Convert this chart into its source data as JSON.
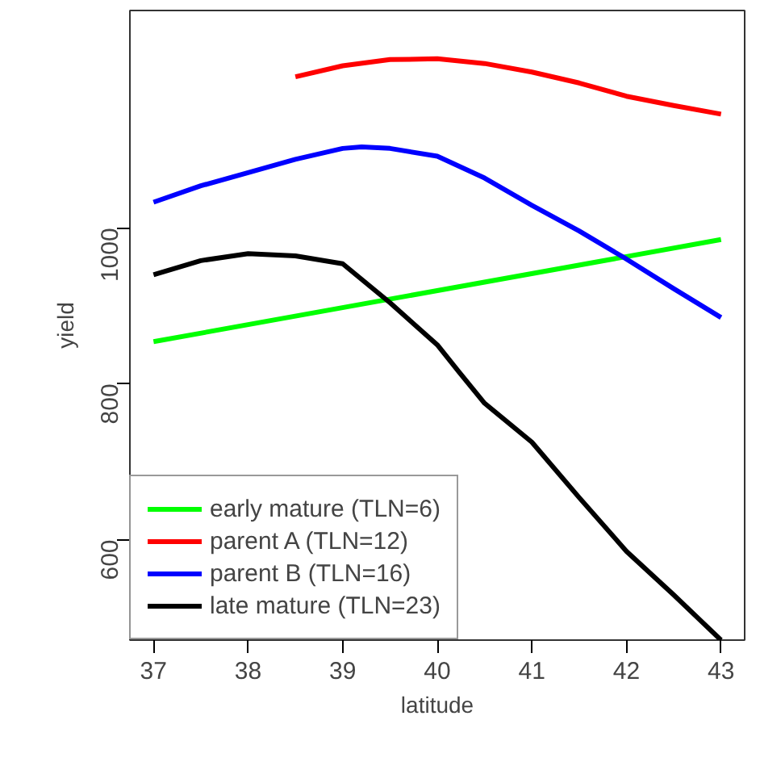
{
  "chart_data": {
    "type": "line",
    "xlabel": "latitude",
    "ylabel": "yield",
    "xlim": [
      36.75,
      43.25
    ],
    "ylim": [
      471,
      1279
    ],
    "xticks": [
      37,
      38,
      39,
      40,
      41,
      42,
      43
    ],
    "yticks": [
      600,
      800,
      1000
    ],
    "grid": false,
    "legend": "bottom left",
    "line_style": "solid",
    "marker": "none",
    "series": [
      {
        "name": "early mature (TLN=6)",
        "color": "#00ff00",
        "x": [
          37,
          43
        ],
        "values": [
          854,
          985
        ]
      },
      {
        "name": "parent A (TLN=12)",
        "color": "#ff0000",
        "x": [
          38.5,
          39,
          39.5,
          40,
          40.5,
          41,
          41.5,
          42,
          42.5,
          43
        ],
        "values": [
          1194,
          1208,
          1216,
          1217,
          1211,
          1200,
          1186,
          1169,
          1157,
          1146
        ]
      },
      {
        "name": "parent B (TLN=16)",
        "color": "#0000ff",
        "x": [
          37,
          37.5,
          38,
          38.5,
          39,
          39.2,
          39.5,
          40,
          40.5,
          41,
          41.5,
          42,
          42.5,
          43
        ],
        "values": [
          1033,
          1054,
          1071,
          1088,
          1102,
          1104,
          1102,
          1092,
          1064,
          1029,
          996,
          960,
          922,
          885
        ]
      },
      {
        "name": "late mature (TLN=23)",
        "color": "#000000",
        "x": [
          37,
          37.5,
          38,
          38.5,
          39,
          39.5,
          40,
          40.23,
          40.5,
          41,
          41.5,
          42,
          42.5,
          43
        ],
        "values": [
          940,
          958,
          967,
          964,
          954,
          904,
          850,
          815,
          775,
          725,
          654,
          585,
          529,
          471
        ]
      }
    ]
  }
}
